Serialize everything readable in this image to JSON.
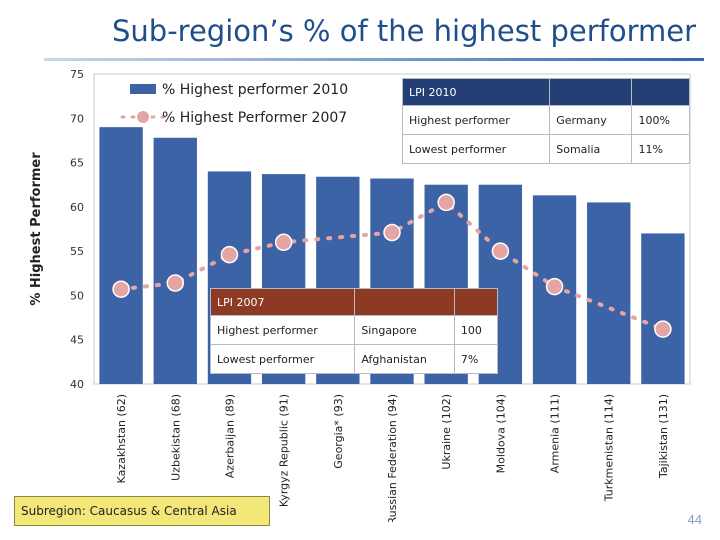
{
  "slide": {
    "title": "Sub-region’s % of the highest performer",
    "subregion_label": "Subregion: Caucasus & Central Asia",
    "page_number": "44"
  },
  "colors": {
    "bar": "#3c63a6",
    "marker": "#e6a5a5",
    "plot_background": "#ffffff",
    "title": "#1f4e8c",
    "lpi2010_header": "#243f74",
    "lpi2007_header": "#8c3a24",
    "subregion_box": "#f3e77a"
  },
  "chart_data": {
    "type": "bar",
    "ylabel": "% Highest Performer",
    "xlabel": "",
    "ylim": [
      40,
      75
    ],
    "yticks": [
      40,
      45,
      50,
      55,
      60,
      65,
      70,
      75
    ],
    "grid": false,
    "legend_position": "top-left",
    "categories": [
      "Kazakhstan (62)",
      "Uzbekistan (68)",
      "Azerbaijan (89)",
      "Kyrgyz Republic (91)",
      "Georgia* (93)",
      "Russian Federation (94)",
      "Ukraine (102)",
      "Moldova (104)",
      "Armenia (111)",
      "Turkmenistan (114)",
      "Tajikistan (131)"
    ],
    "series": [
      {
        "name": "% Highest performer 2010",
        "kind": "bar",
        "values": [
          69.0,
          67.8,
          64.0,
          63.7,
          63.4,
          63.2,
          62.5,
          62.5,
          61.3,
          60.5,
          57.0
        ]
      },
      {
        "name": "% Highest Performer 2007",
        "kind": "dotted-line-markers",
        "values": [
          50.7,
          51.4,
          54.6,
          56.0,
          null,
          57.1,
          60.5,
          55.0,
          51.0,
          null,
          46.2
        ]
      }
    ]
  },
  "lpi2010_table": {
    "header": [
      "LPI 2010",
      "",
      ""
    ],
    "rows": [
      [
        "Highest performer",
        "Germany",
        "100%"
      ],
      [
        "Lowest performer",
        "Somalia",
        "11%"
      ]
    ]
  },
  "lpi2007_table": {
    "header": [
      "LPI 2007",
      "",
      ""
    ],
    "rows": [
      [
        "Highest performer",
        "Singapore",
        "100"
      ],
      [
        "Lowest performer",
        "Afghanistan",
        "7%"
      ]
    ]
  }
}
